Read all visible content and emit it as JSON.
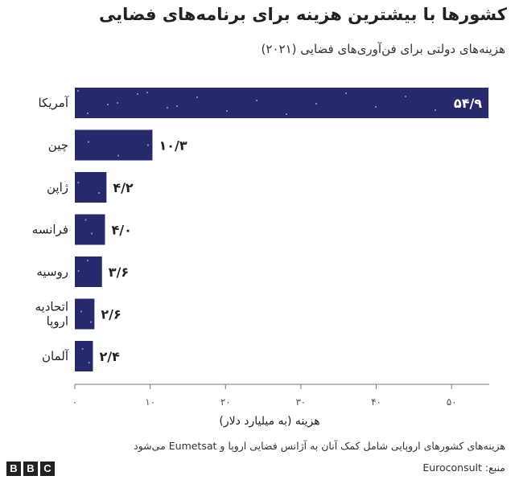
{
  "title": "کشورها با بیشترین هزینه برای برنامه‌های فضایی",
  "subtitle": "هزینه‌های دولتی برای فن‌آوری‌های فضایی (۲۰۲۱)",
  "note": "هزینه‌های کشورهای اروپایی شامل کمک آنان به آژانس فضایی اروپا و Eumetsat می‌شود",
  "source": "منبع: Euroconsult",
  "logo": [
    "B",
    "B",
    "C"
  ],
  "colors": {
    "bar": "#262a6b",
    "axis": "#777777",
    "text": "#222222"
  },
  "chart_data": {
    "type": "bar",
    "orientation": "horizontal",
    "categories": [
      "آمریکا",
      "چین",
      "ژاپن",
      "فرانسه",
      "روسیه",
      "اتحادیه اروپا",
      "آلمان"
    ],
    "category_lines": [
      [
        "آمریکا"
      ],
      [
        "چین"
      ],
      [
        "ژاپن"
      ],
      [
        "فرانسه"
      ],
      [
        "روسیه"
      ],
      [
        "اتحادیه",
        "اروپا"
      ],
      [
        "آلمان"
      ]
    ],
    "values": [
      54.9,
      10.3,
      4.2,
      4.0,
      3.6,
      2.6,
      2.4
    ],
    "value_labels": [
      "۵۴/۹",
      "۱۰/۳",
      "۴/۲",
      "۴/۰",
      "۳/۶",
      "۲/۶",
      "۲/۴"
    ],
    "xlabel": "هزینه (به میلیارد دلار)",
    "xlim": [
      0,
      55
    ],
    "xticks": [
      0,
      10,
      20,
      30,
      40,
      50
    ],
    "xtick_labels": [
      "۰",
      "۱۰",
      "۲۰",
      "۳۰",
      "۴۰",
      "۵۰"
    ],
    "grid": false
  }
}
